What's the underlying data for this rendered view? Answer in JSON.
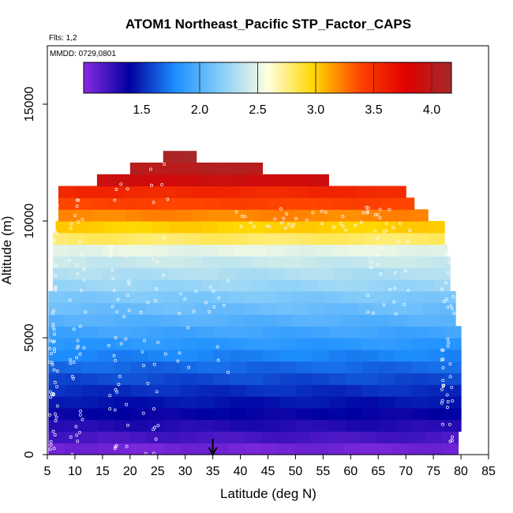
{
  "chart_data": {
    "type": "heatmap",
    "title": "ATOM1 Northeast_Pacific STP_Factor_CAPS",
    "annotations": [
      "Flts: 1,2",
      "MMDD: 0729,0801"
    ],
    "xlabel": "Latitude (deg N)",
    "ylabel": "Altitude (m)",
    "xlim": [
      5,
      85
    ],
    "ylim": [
      0,
      17500
    ],
    "x_ticks": [
      5,
      10,
      15,
      20,
      25,
      30,
      35,
      40,
      45,
      50,
      55,
      60,
      65,
      70,
      75,
      80,
      85
    ],
    "y_ticks": [
      0,
      5000,
      10000,
      15000
    ],
    "colorbar": {
      "min": 1.0,
      "max": 4.17,
      "ticks": [
        1.5,
        2.0,
        2.5,
        3.0,
        3.5,
        4.0
      ],
      "colors": [
        "#8a2be2",
        "#0000a0",
        "#1e90ff",
        "#87cefa",
        "#ffffe0",
        "#ffd700",
        "#ff4500",
        "#e00000",
        "#a52a2a"
      ],
      "placement": "top-inside"
    },
    "layers": [
      {
        "alt_bottom": 0,
        "alt_top": 500,
        "lat_start": 5.2,
        "lat_end": 79.5,
        "value": 1.07
      },
      {
        "alt_bottom": 500,
        "alt_top": 1000,
        "lat_start": 5.2,
        "lat_end": 79.5,
        "value": 1.2
      },
      {
        "alt_bottom": 1000,
        "alt_top": 1500,
        "lat_start": 5.2,
        "lat_end": 80.0,
        "value": 1.3
      },
      {
        "alt_bottom": 1500,
        "alt_top": 2000,
        "lat_start": 5.2,
        "lat_end": 80.0,
        "value": 1.38
      },
      {
        "alt_bottom": 2000,
        "alt_top": 2500,
        "lat_start": 5.2,
        "lat_end": 80.0,
        "value": 1.45
      },
      {
        "alt_bottom": 2500,
        "alt_top": 3000,
        "lat_start": 5.2,
        "lat_end": 80.0,
        "value": 1.52
      },
      {
        "alt_bottom": 3000,
        "alt_top": 3500,
        "lat_start": 5.2,
        "lat_end": 80.0,
        "value": 1.6
      },
      {
        "alt_bottom": 3500,
        "alt_top": 4000,
        "lat_start": 5.2,
        "lat_end": 80.0,
        "value": 1.68
      },
      {
        "alt_bottom": 4000,
        "alt_top": 4500,
        "lat_start": 5.2,
        "lat_end": 80.0,
        "value": 1.76
      },
      {
        "alt_bottom": 4500,
        "alt_top": 5000,
        "lat_start": 5.2,
        "lat_end": 80.0,
        "value": 1.84
      },
      {
        "alt_bottom": 5000,
        "alt_top": 5500,
        "lat_start": 5.2,
        "lat_end": 80.0,
        "value": 1.92
      },
      {
        "alt_bottom": 5500,
        "alt_top": 6000,
        "lat_start": 5.2,
        "lat_end": 79.0,
        "value": 2.0
      },
      {
        "alt_bottom": 6000,
        "alt_top": 6500,
        "lat_start": 5.2,
        "lat_end": 79.0,
        "value": 2.08
      },
      {
        "alt_bottom": 6500,
        "alt_top": 7000,
        "lat_start": 5.2,
        "lat_end": 79.0,
        "value": 2.15
      },
      {
        "alt_bottom": 7000,
        "alt_top": 7500,
        "lat_start": 6.0,
        "lat_end": 78.0,
        "value": 2.25
      },
      {
        "alt_bottom": 7500,
        "alt_top": 8000,
        "lat_start": 6.0,
        "lat_end": 78.0,
        "value": 2.32
      },
      {
        "alt_bottom": 8000,
        "alt_top": 8500,
        "lat_start": 6.0,
        "lat_end": 78.0,
        "value": 2.4
      },
      {
        "alt_bottom": 8500,
        "alt_top": 9000,
        "lat_start": 6.0,
        "lat_end": 77.5,
        "value": 2.5
      },
      {
        "alt_bottom": 9000,
        "alt_top": 9500,
        "lat_start": 6.0,
        "lat_end": 77.0,
        "value": 2.8
      },
      {
        "alt_bottom": 9500,
        "alt_top": 10000,
        "lat_start": 6.5,
        "lat_end": 77.0,
        "value": 3.0
      },
      {
        "alt_bottom": 10000,
        "alt_top": 10500,
        "lat_start": 7.0,
        "lat_end": 74.0,
        "value": 3.2
      },
      {
        "alt_bottom": 10500,
        "alt_top": 11000,
        "lat_start": 7.0,
        "lat_end": 71.5,
        "value": 3.4
      },
      {
        "alt_bottom": 11000,
        "alt_top": 11500,
        "lat_start": 7.0,
        "lat_end": 70.0,
        "value": 3.55
      },
      {
        "alt_bottom": 11500,
        "alt_top": 12000,
        "lat_start": 14.0,
        "lat_end": 56.0,
        "value": 3.9
      },
      {
        "alt_bottom": 12000,
        "alt_top": 12500,
        "lat_start": 20.0,
        "lat_end": 44.0,
        "value": 4.05
      },
      {
        "alt_bottom": 12500,
        "alt_top": 13000,
        "lat_start": 26.0,
        "lat_end": 32.0,
        "value": 4.15
      }
    ],
    "arrow_marker": {
      "latitude": 35,
      "altitude_tip": 0
    }
  }
}
